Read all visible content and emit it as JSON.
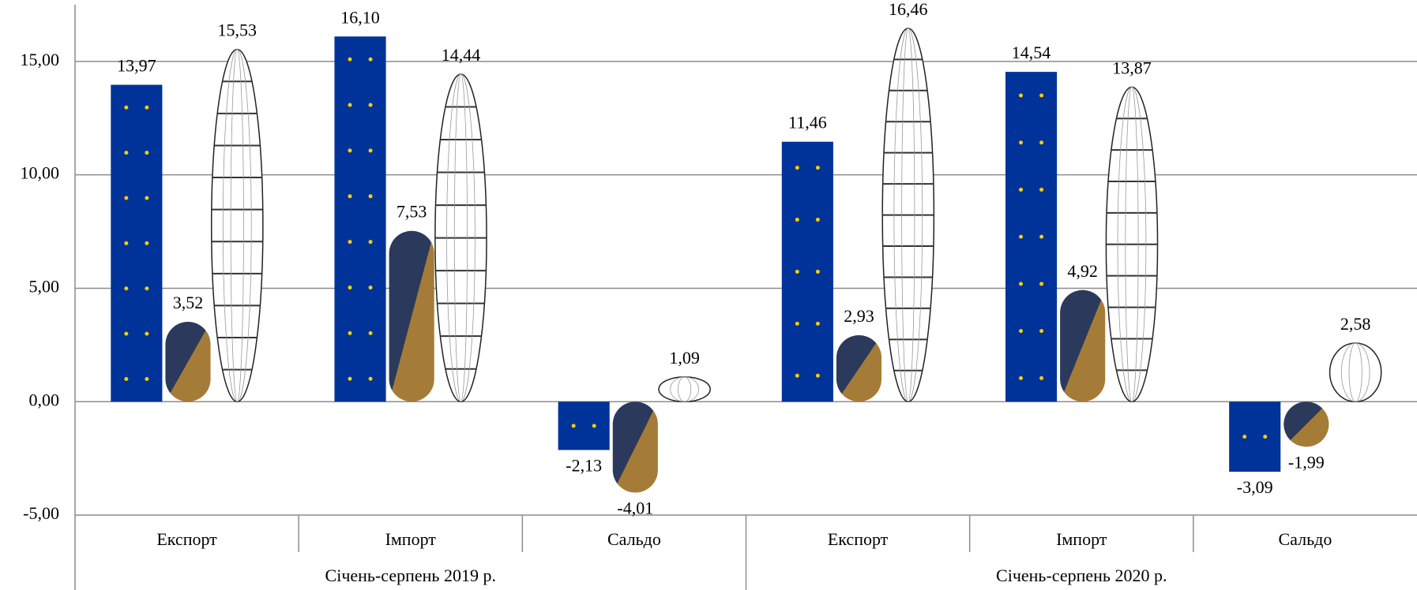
{
  "chart_data": {
    "type": "bar",
    "categories": [
      "Експорт",
      "Імпорт",
      "Сальдо",
      "Експорт",
      "Імпорт",
      "Сальдо"
    ],
    "groups": [
      "Січень-серпень 2019 р.",
      "Січень-серпень 2020 р."
    ],
    "series": [
      {
        "color": "#003399",
        "values": [
          13.97,
          16.1,
          -2.13,
          11.46,
          14.54,
          -3.09
        ],
        "value_labels": [
          "13,97",
          "16,10",
          "-2,13",
          "11,46",
          "14,54",
          "-3,09"
        ]
      },
      {
        "color": "#a57c37",
        "values": [
          3.52,
          7.53,
          -4.01,
          2.93,
          4.92,
          -1.99
        ],
        "value_labels": [
          "3,52",
          "7,53",
          "-4,01",
          "2,93",
          "4,92",
          "-1,99"
        ]
      },
      {
        "color": "#ffffff",
        "values": [
          15.53,
          14.44,
          1.09,
          16.46,
          13.87,
          2.58
        ],
        "value_labels": [
          "15,53",
          "14,44",
          "1,09",
          "16,46",
          "13,87",
          "2,58"
        ]
      }
    ],
    "ylim": [
      -5,
      17.5
    ],
    "yticks": [
      {
        "value": -5,
        "label": "-5,00"
      },
      {
        "value": 0,
        "label": "0,00"
      },
      {
        "value": 5,
        "label": "5,00"
      },
      {
        "value": 10,
        "label": "10,00"
      },
      {
        "value": 15,
        "label": "15,00"
      }
    ],
    "grid": true
  }
}
